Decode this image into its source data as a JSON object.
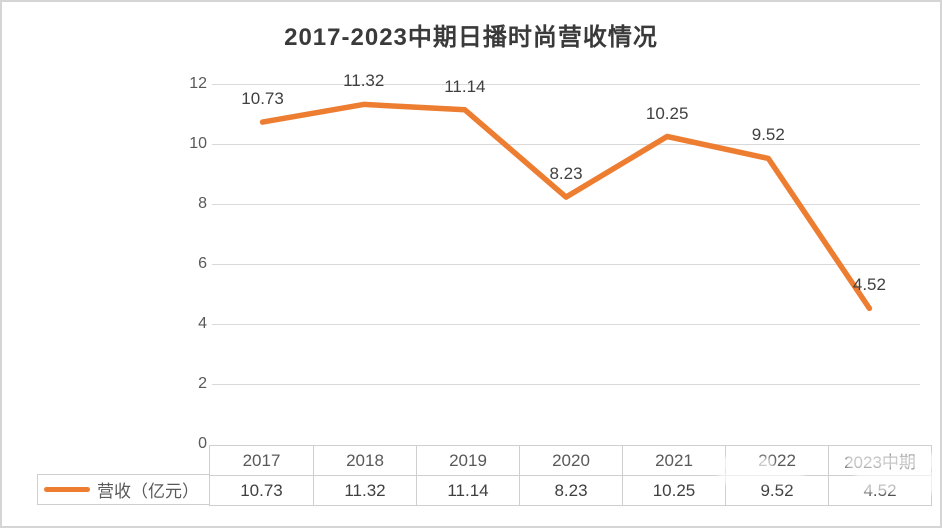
{
  "title": "2017-2023中期日播时尚营收情况",
  "legend": {
    "label": "营收（亿元）"
  },
  "colors": {
    "line": "#ED7D31",
    "gridline": "#D9D9D9",
    "table_border": "#CFCFCF",
    "title_text": "#3A3A3A",
    "axis_text": "#595959",
    "value_text": "#404040"
  },
  "chart_data": {
    "type": "line",
    "title": "2017-2023中期日播时尚营收情况",
    "categories": [
      "2017",
      "2018",
      "2019",
      "2020",
      "2021",
      "2022",
      "2023中期"
    ],
    "series": [
      {
        "name": "营收（亿元）",
        "values": [
          10.73,
          11.32,
          11.14,
          8.23,
          10.25,
          9.52,
          4.52
        ]
      }
    ],
    "data_labels": [
      "10.73",
      "11.32",
      "11.14",
      "8.23",
      "10.25",
      "9.52",
      "4.52"
    ],
    "xlabel": "",
    "ylabel": "",
    "ylim": [
      0,
      12
    ],
    "yticks": [
      0,
      2,
      4,
      6,
      8,
      10,
      12
    ],
    "grid": true,
    "legend_position": "bottom-left"
  },
  "table": {
    "headers": [
      "2017",
      "2018",
      "2019",
      "2020",
      "2021",
      "2022",
      "2023中期"
    ],
    "row_label": "营收（亿元）",
    "values": [
      "10.73",
      "11.32",
      "11.14",
      "8.23",
      "10.25",
      "9.52",
      "4.52"
    ]
  }
}
